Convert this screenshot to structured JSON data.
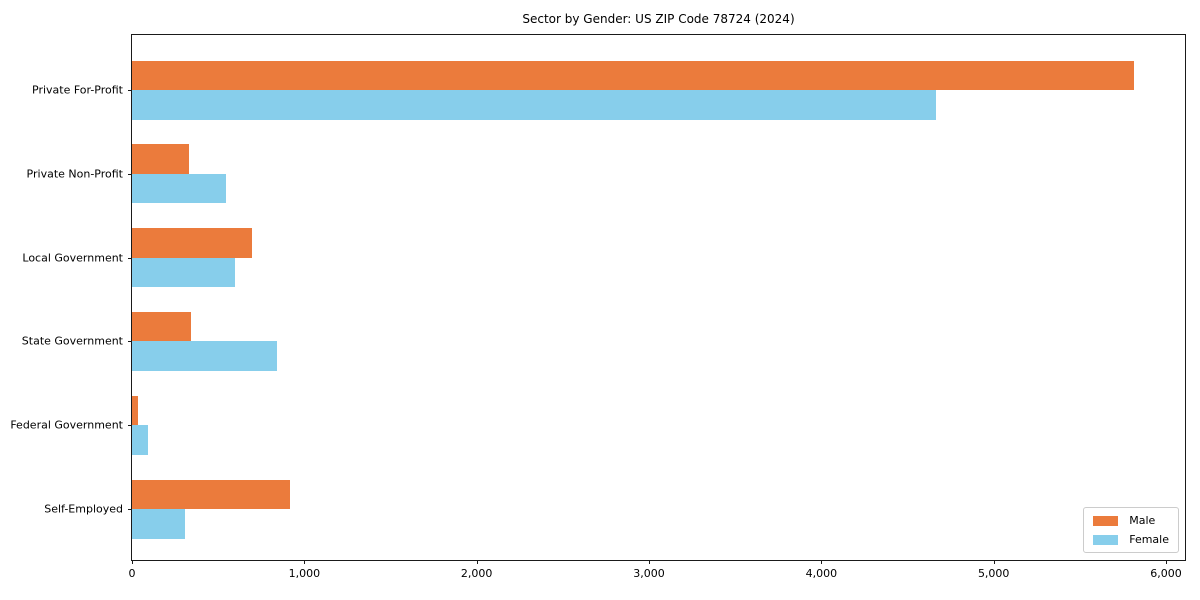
{
  "chart_data": {
    "type": "bar",
    "orientation": "horizontal",
    "title": "Sector by Gender: US ZIP Code 78724 (2024)",
    "categories": [
      "Private For-Profit",
      "Private Non-Profit",
      "Local Government",
      "State Government",
      "Federal Government",
      "Self-Employed"
    ],
    "series": [
      {
        "name": "Male",
        "color": "#EB7B3C",
        "values": [
          5815,
          330,
          695,
          340,
          35,
          915
        ]
      },
      {
        "name": "Female",
        "color": "#87CEEB",
        "values": [
          4665,
          545,
          600,
          840,
          95,
          305
        ]
      }
    ],
    "xlabel": "",
    "ylabel": "",
    "xlim": [
      0,
      6110
    ],
    "xticks": {
      "values": [
        0,
        1000,
        2000,
        3000,
        4000,
        5000,
        6000
      ],
      "labels": [
        "0",
        "1,000",
        "2,000",
        "3,000",
        "4,000",
        "5,000",
        "6,000"
      ]
    },
    "grid": false,
    "legend": {
      "position": "lower right"
    }
  }
}
